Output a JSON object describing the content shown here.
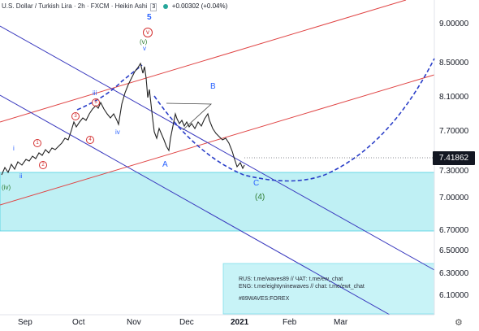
{
  "header": {
    "symbol": "U.S. Dollar / Turkish Lira · 2h · FXCM · Heikin Ashi",
    "badge": "3",
    "change": "+0.00302 (+0.04%)"
  },
  "price_axis": [
    "9.00000",
    "8.50000",
    "8.10000",
    "7.70000",
    "7.30000",
    "7.00000",
    "6.70000",
    "6.50000",
    "6.30000",
    "6.10000"
  ],
  "current_price": "7.41862",
  "time_axis": [
    "Sep",
    "Oct",
    "Nov",
    "Dec",
    "2021",
    "Feb",
    "Mar"
  ],
  "info_text": {
    "line1": "RUS: t.me/waves89 // ЧАТ: t.me/ew_chat",
    "line2": "ENG: t.me/eightyninewaves // chat: t.me/ewt_chat",
    "line3": "#89WAVES:FOREX"
  },
  "wave_labels": {
    "five": "5",
    "v_circled": "v",
    "v_paren": "(v)",
    "v_small": "v",
    "iii": "iii",
    "iv": "iv",
    "i": "i",
    "ii": "ii",
    "iv_paren": "(iv)",
    "A": "A",
    "B": "B",
    "C": "C",
    "four_paren": "(4)",
    "c1": "1",
    "c2": "2",
    "c3": "3",
    "c4": "4",
    "c5": "5"
  },
  "colors": {
    "accent_blue": "#2962ff",
    "channel_blue": "#3b3bbf",
    "channel_red": "#e04545",
    "zone_fill": "#bff0f4",
    "wave_green": "#26a69a",
    "wave_red": "#d32f2f"
  },
  "icons": {
    "settings": "gear-icon"
  }
}
